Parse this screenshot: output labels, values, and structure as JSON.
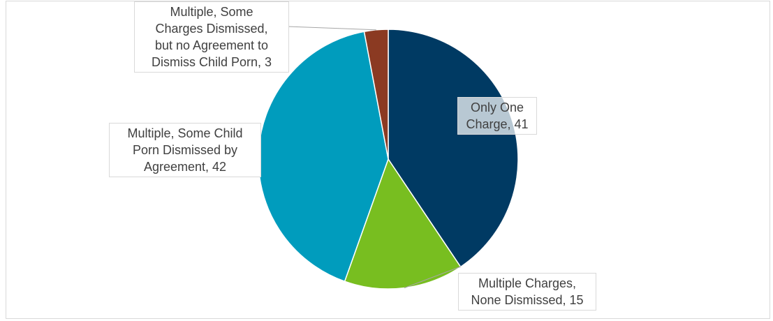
{
  "chart_data": {
    "type": "pie",
    "title": "",
    "slices": [
      {
        "label": [
          "Only One",
          "Charge, 41"
        ],
        "value": 41,
        "color": "#003A63"
      },
      {
        "label": [
          "Multiple Charges,",
          "None Dismissed, 15"
        ],
        "value": 15,
        "color": "#78BE20"
      },
      {
        "label": [
          "Multiple, Some Child",
          "Porn Dismissed by",
          "Agreement, 42"
        ],
        "value": 42,
        "color": "#009CBD"
      },
      {
        "label": [
          "Multiple, Some",
          "Charges Dismissed,",
          "but no Agreement to",
          "Dismiss Child Porn, 3"
        ],
        "value": 3,
        "color": "#8B3A22"
      }
    ],
    "start_angle_deg": 0,
    "direction": "clockwise"
  }
}
